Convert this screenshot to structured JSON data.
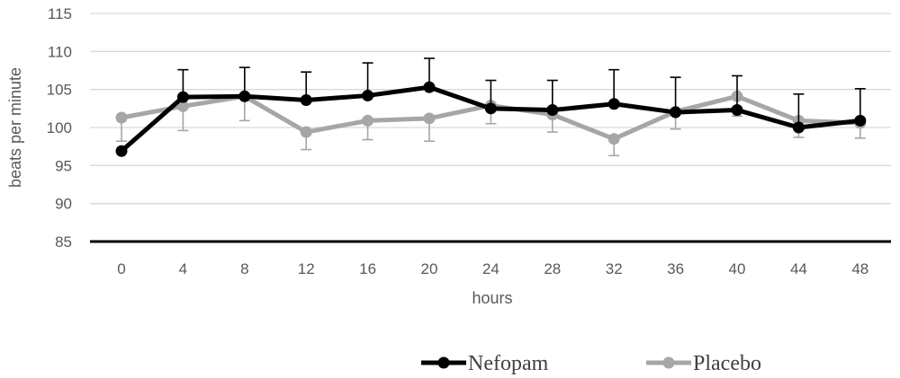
{
  "chart_data": {
    "type": "line",
    "x": [
      0,
      4,
      8,
      12,
      16,
      20,
      24,
      28,
      32,
      36,
      40,
      44,
      48
    ],
    "xlabel": "hours",
    "ylabel": "beats per minute",
    "ylim": [
      85,
      115
    ],
    "yticks": [
      85,
      90,
      95,
      100,
      105,
      110,
      115
    ],
    "grid": true,
    "legend_position": "bottom",
    "series": [
      {
        "name": "Nefopam",
        "color": "#000000",
        "values": [
          96.9,
          104.0,
          104.1,
          103.6,
          104.2,
          105.3,
          102.5,
          102.3,
          103.1,
          102.0,
          102.3,
          100.0,
          100.9
        ],
        "error_upper": [
          null,
          3.6,
          3.8,
          3.7,
          4.3,
          3.8,
          3.7,
          3.9,
          4.5,
          4.6,
          4.5,
          4.4,
          4.2
        ]
      },
      {
        "name": "Placebo",
        "color": "#a6a6a6",
        "values": [
          101.3,
          102.8,
          104.1,
          99.4,
          100.9,
          101.2,
          102.9,
          101.7,
          98.5,
          102.1,
          104.1,
          100.9,
          100.6
        ],
        "error_lower": [
          3.1,
          3.2,
          3.2,
          2.3,
          2.5,
          3.0,
          2.4,
          2.3,
          2.2,
          2.3,
          2.6,
          2.2,
          2.0
        ]
      }
    ]
  }
}
